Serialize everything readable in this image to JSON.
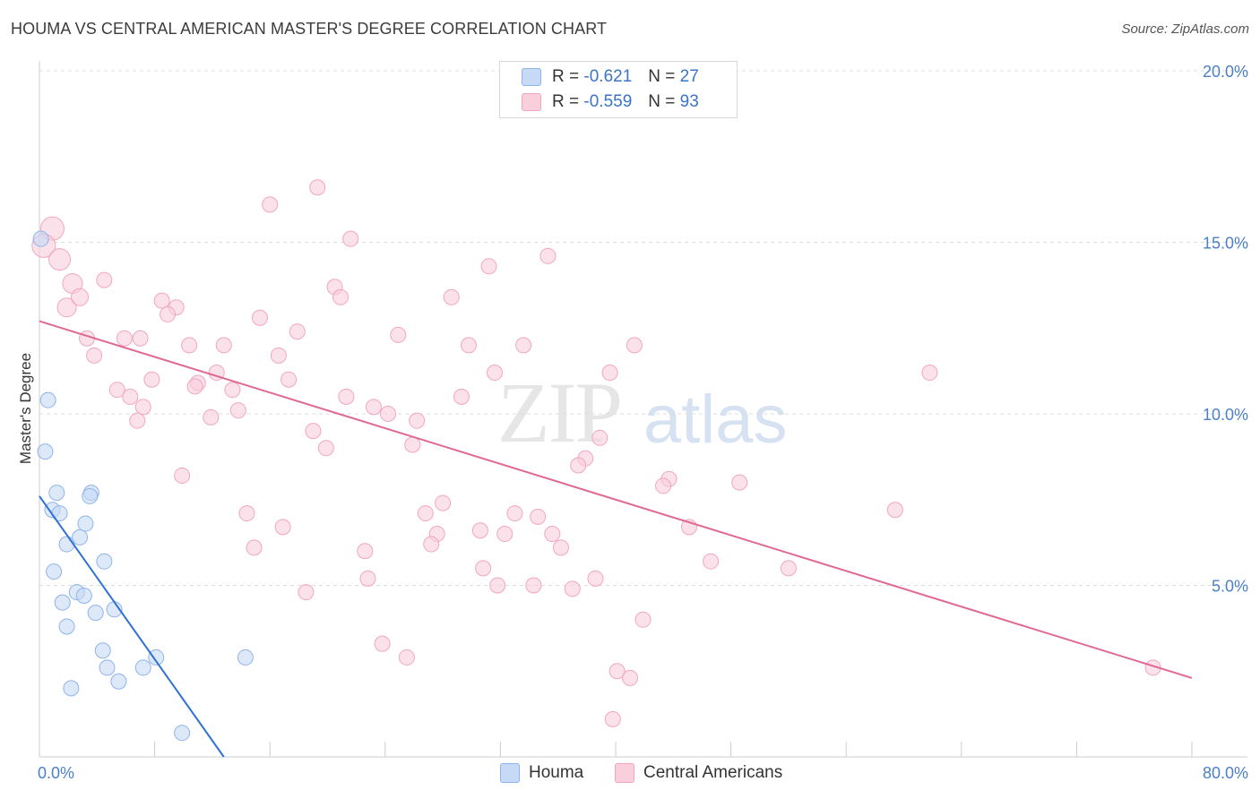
{
  "header": {
    "title": "HOUMA VS CENTRAL AMERICAN MASTER'S DEGREE CORRELATION CHART",
    "source": "Source: ZipAtlas.com"
  },
  "watermark": {
    "zip": "ZIP",
    "atlas": "atlas"
  },
  "legend": {
    "rows": [
      {
        "r_label": "R =",
        "r_value": "-0.621",
        "n_label": "N =",
        "n_value": "27"
      },
      {
        "r_label": "R =",
        "r_value": "-0.559",
        "n_label": "N =",
        "n_value": "93"
      }
    ]
  },
  "chart_data": {
    "type": "scatter",
    "title": "HOUMA VS CENTRAL AMERICAN MASTER'S DEGREE CORRELATION CHART",
    "xlabel": "",
    "ylabel": "Master's Degree",
    "xlim": [
      0,
      80
    ],
    "ylim": [
      0,
      20
    ],
    "x_tick_labels": [
      "0.0%",
      "80.0%"
    ],
    "y_tick_labels": [
      "5.0%",
      "10.0%",
      "15.0%",
      "20.0%"
    ],
    "y_ticks": [
      5,
      10,
      15,
      20
    ],
    "colors": {
      "houma": "#8fb4ea",
      "central": "#f2a6be",
      "houma_line": "#2f72d3",
      "central_line": "#e06894"
    },
    "series": [
      {
        "name": "Houma",
        "points": [
          [
            0.1,
            15.1
          ],
          [
            0.6,
            10.4
          ],
          [
            0.4,
            8.9
          ],
          [
            1.2,
            7.7
          ],
          [
            0.9,
            7.2
          ],
          [
            1.4,
            7.1
          ],
          [
            3.6,
            7.7
          ],
          [
            3.5,
            7.6
          ],
          [
            3.2,
            6.8
          ],
          [
            2.8,
            6.4
          ],
          [
            1.9,
            6.2
          ],
          [
            4.5,
            5.7
          ],
          [
            1.0,
            5.4
          ],
          [
            2.6,
            4.8
          ],
          [
            3.1,
            4.7
          ],
          [
            1.6,
            4.5
          ],
          [
            5.2,
            4.3
          ],
          [
            3.9,
            4.2
          ],
          [
            1.9,
            3.8
          ],
          [
            4.4,
            3.1
          ],
          [
            4.7,
            2.6
          ],
          [
            8.1,
            2.9
          ],
          [
            7.2,
            2.6
          ],
          [
            5.5,
            2.2
          ],
          [
            2.2,
            2.0
          ],
          [
            14.3,
            2.9
          ],
          [
            9.9,
            0.7
          ]
        ],
        "trend": [
          [
            0.0,
            7.6
          ],
          [
            12.8,
            0.0
          ]
        ]
      },
      {
        "name": "Central Americans",
        "points": [
          [
            0.9,
            15.4
          ],
          [
            0.3,
            14.9
          ],
          [
            1.4,
            14.5
          ],
          [
            2.3,
            13.8
          ],
          [
            1.9,
            13.1
          ],
          [
            2.8,
            13.4
          ],
          [
            4.5,
            13.9
          ],
          [
            16.0,
            16.1
          ],
          [
            19.3,
            16.6
          ],
          [
            21.6,
            15.1
          ],
          [
            31.2,
            14.3
          ],
          [
            35.3,
            14.6
          ],
          [
            20.5,
            13.7
          ],
          [
            20.9,
            13.4
          ],
          [
            28.6,
            13.4
          ],
          [
            8.5,
            13.3
          ],
          [
            9.5,
            13.1
          ],
          [
            8.9,
            12.9
          ],
          [
            15.3,
            12.8
          ],
          [
            17.9,
            12.4
          ],
          [
            24.9,
            12.3
          ],
          [
            5.9,
            12.2
          ],
          [
            3.3,
            12.2
          ],
          [
            7.0,
            12.2
          ],
          [
            10.4,
            12.0
          ],
          [
            12.8,
            12.0
          ],
          [
            29.8,
            12.0
          ],
          [
            33.6,
            12.0
          ],
          [
            41.3,
            12.0
          ],
          [
            16.6,
            11.7
          ],
          [
            3.8,
            11.7
          ],
          [
            31.6,
            11.2
          ],
          [
            39.6,
            11.2
          ],
          [
            12.3,
            11.2
          ],
          [
            7.8,
            11.0
          ],
          [
            11.0,
            10.9
          ],
          [
            17.3,
            11.0
          ],
          [
            61.8,
            11.2
          ],
          [
            5.4,
            10.7
          ],
          [
            10.8,
            10.8
          ],
          [
            13.4,
            10.7
          ],
          [
            21.3,
            10.5
          ],
          [
            29.3,
            10.5
          ],
          [
            6.3,
            10.5
          ],
          [
            7.2,
            10.2
          ],
          [
            13.8,
            10.1
          ],
          [
            23.2,
            10.2
          ],
          [
            24.2,
            10.0
          ],
          [
            6.8,
            9.8
          ],
          [
            11.9,
            9.9
          ],
          [
            26.2,
            9.8
          ],
          [
            19.0,
            9.5
          ],
          [
            38.9,
            9.3
          ],
          [
            25.9,
            9.1
          ],
          [
            19.9,
            9.0
          ],
          [
            37.9,
            8.7
          ],
          [
            37.4,
            8.5
          ],
          [
            9.9,
            8.2
          ],
          [
            43.7,
            8.1
          ],
          [
            43.3,
            7.9
          ],
          [
            48.6,
            8.0
          ],
          [
            28.0,
            7.4
          ],
          [
            26.8,
            7.1
          ],
          [
            33.0,
            7.1
          ],
          [
            34.6,
            7.0
          ],
          [
            59.4,
            7.2
          ],
          [
            14.4,
            7.1
          ],
          [
            16.9,
            6.7
          ],
          [
            45.1,
            6.7
          ],
          [
            30.6,
            6.6
          ],
          [
            32.3,
            6.5
          ],
          [
            35.6,
            6.5
          ],
          [
            27.6,
            6.5
          ],
          [
            27.2,
            6.2
          ],
          [
            14.9,
            6.1
          ],
          [
            22.6,
            6.0
          ],
          [
            36.2,
            6.1
          ],
          [
            46.6,
            5.7
          ],
          [
            52.0,
            5.5
          ],
          [
            30.8,
            5.5
          ],
          [
            22.8,
            5.2
          ],
          [
            38.6,
            5.2
          ],
          [
            31.8,
            5.0
          ],
          [
            34.3,
            5.0
          ],
          [
            37.0,
            4.9
          ],
          [
            18.5,
            4.8
          ],
          [
            41.9,
            4.0
          ],
          [
            23.8,
            3.3
          ],
          [
            25.5,
            2.9
          ],
          [
            40.1,
            2.5
          ],
          [
            41.0,
            2.3
          ],
          [
            77.3,
            2.6
          ],
          [
            39.8,
            1.1
          ]
        ],
        "trend": [
          [
            0.0,
            12.7
          ],
          [
            80.0,
            2.3
          ]
        ]
      }
    ],
    "legend_entries": [
      "Houma",
      "Central Americans"
    ],
    "legend_position": "bottom"
  }
}
